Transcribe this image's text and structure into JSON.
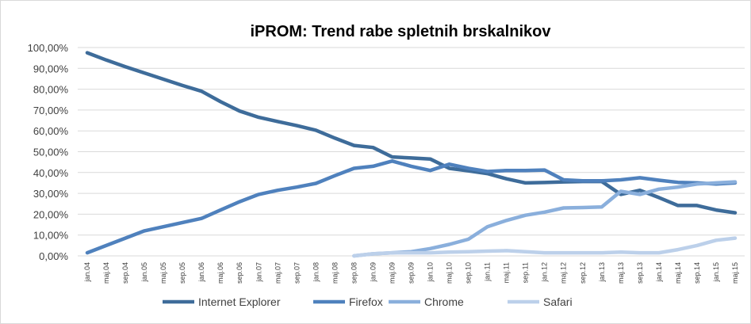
{
  "chart_data": {
    "type": "line",
    "title": "iPROM: Trend rabe spletnih brskalnikov",
    "categories": [
      "jan.04",
      "maj.04",
      "sep.04",
      "jan.05",
      "maj.05",
      "sep.05",
      "jan.06",
      "maj.06",
      "sep.06",
      "jan.07",
      "maj.07",
      "sep.07",
      "jan.08",
      "maj.08",
      "sep.08",
      "jan.09",
      "maj.09",
      "sep.09",
      "jan.10",
      "maj.10",
      "sep.10",
      "jan.11",
      "maj.11",
      "sep.11",
      "jan.12",
      "maj.12",
      "sep.12",
      "jan.13",
      "maj.13",
      "sep.13",
      "jan.14",
      "maj.14",
      "sep.14",
      "jan.15",
      "maj.15"
    ],
    "series": [
      {
        "name": "Internet Explorer",
        "color": "#3e6c9a",
        "values": [
          97.5,
          94,
          90.8,
          87.8,
          84.8,
          81.8,
          79,
          74,
          69.5,
          66.5,
          64.5,
          62.5,
          60.3,
          56.5,
          53,
          52,
          47.5,
          47,
          46.5,
          42,
          40.8,
          39.5,
          37,
          35,
          35.2,
          35.5,
          35.7,
          35.7,
          29.5,
          31.5,
          28,
          24.2,
          24.2,
          22,
          20.7
        ]
      },
      {
        "name": "Firefox",
        "color": "#4f81bd",
        "values": [
          1.5,
          5,
          8.5,
          12,
          14,
          16,
          18,
          22,
          26,
          29.5,
          31.5,
          33,
          34.8,
          38.5,
          42,
          43,
          45.5,
          43,
          41,
          44,
          42,
          40.5,
          41,
          41,
          41.2,
          36.5,
          36,
          36,
          36.5,
          37.5,
          36.3,
          35.3,
          35,
          34.5,
          35
        ]
      },
      {
        "name": "Chrome",
        "color": "#8aafdc",
        "values": [
          null,
          null,
          null,
          null,
          null,
          null,
          null,
          null,
          null,
          null,
          null,
          null,
          null,
          null,
          0,
          1,
          1.5,
          2,
          3.5,
          5.5,
          8,
          14,
          17,
          19.5,
          21,
          23,
          23.2,
          23.5,
          31,
          29.5,
          32,
          33,
          34.5,
          35,
          35.5
        ]
      },
      {
        "name": "Safari",
        "color": "#bcd0ea",
        "values": [
          null,
          null,
          null,
          null,
          null,
          null,
          null,
          null,
          null,
          null,
          null,
          null,
          null,
          null,
          0,
          1,
          1.5,
          1.5,
          1.5,
          1.8,
          2,
          2.3,
          2.5,
          2,
          1.5,
          1.5,
          1.5,
          1.5,
          1.8,
          1.5,
          1.5,
          3,
          5,
          7.5,
          8.5
        ]
      }
    ],
    "ylim": [
      0,
      100
    ],
    "yticks": [
      {
        "value": 0,
        "label": "0,00%"
      },
      {
        "value": 10,
        "label": "10,00%"
      },
      {
        "value": 20,
        "label": "20,00%"
      },
      {
        "value": 30,
        "label": "30,00%"
      },
      {
        "value": 40,
        "label": "40,00%"
      },
      {
        "value": 50,
        "label": "50,00%"
      },
      {
        "value": 60,
        "label": "60,00%"
      },
      {
        "value": 70,
        "label": "70,00%"
      },
      {
        "value": 80,
        "label": "80,00%"
      },
      {
        "value": 90,
        "label": "90,00%"
      },
      {
        "value": 100,
        "label": "100,00%"
      }
    ],
    "grid": true,
    "legend": "bottom"
  }
}
